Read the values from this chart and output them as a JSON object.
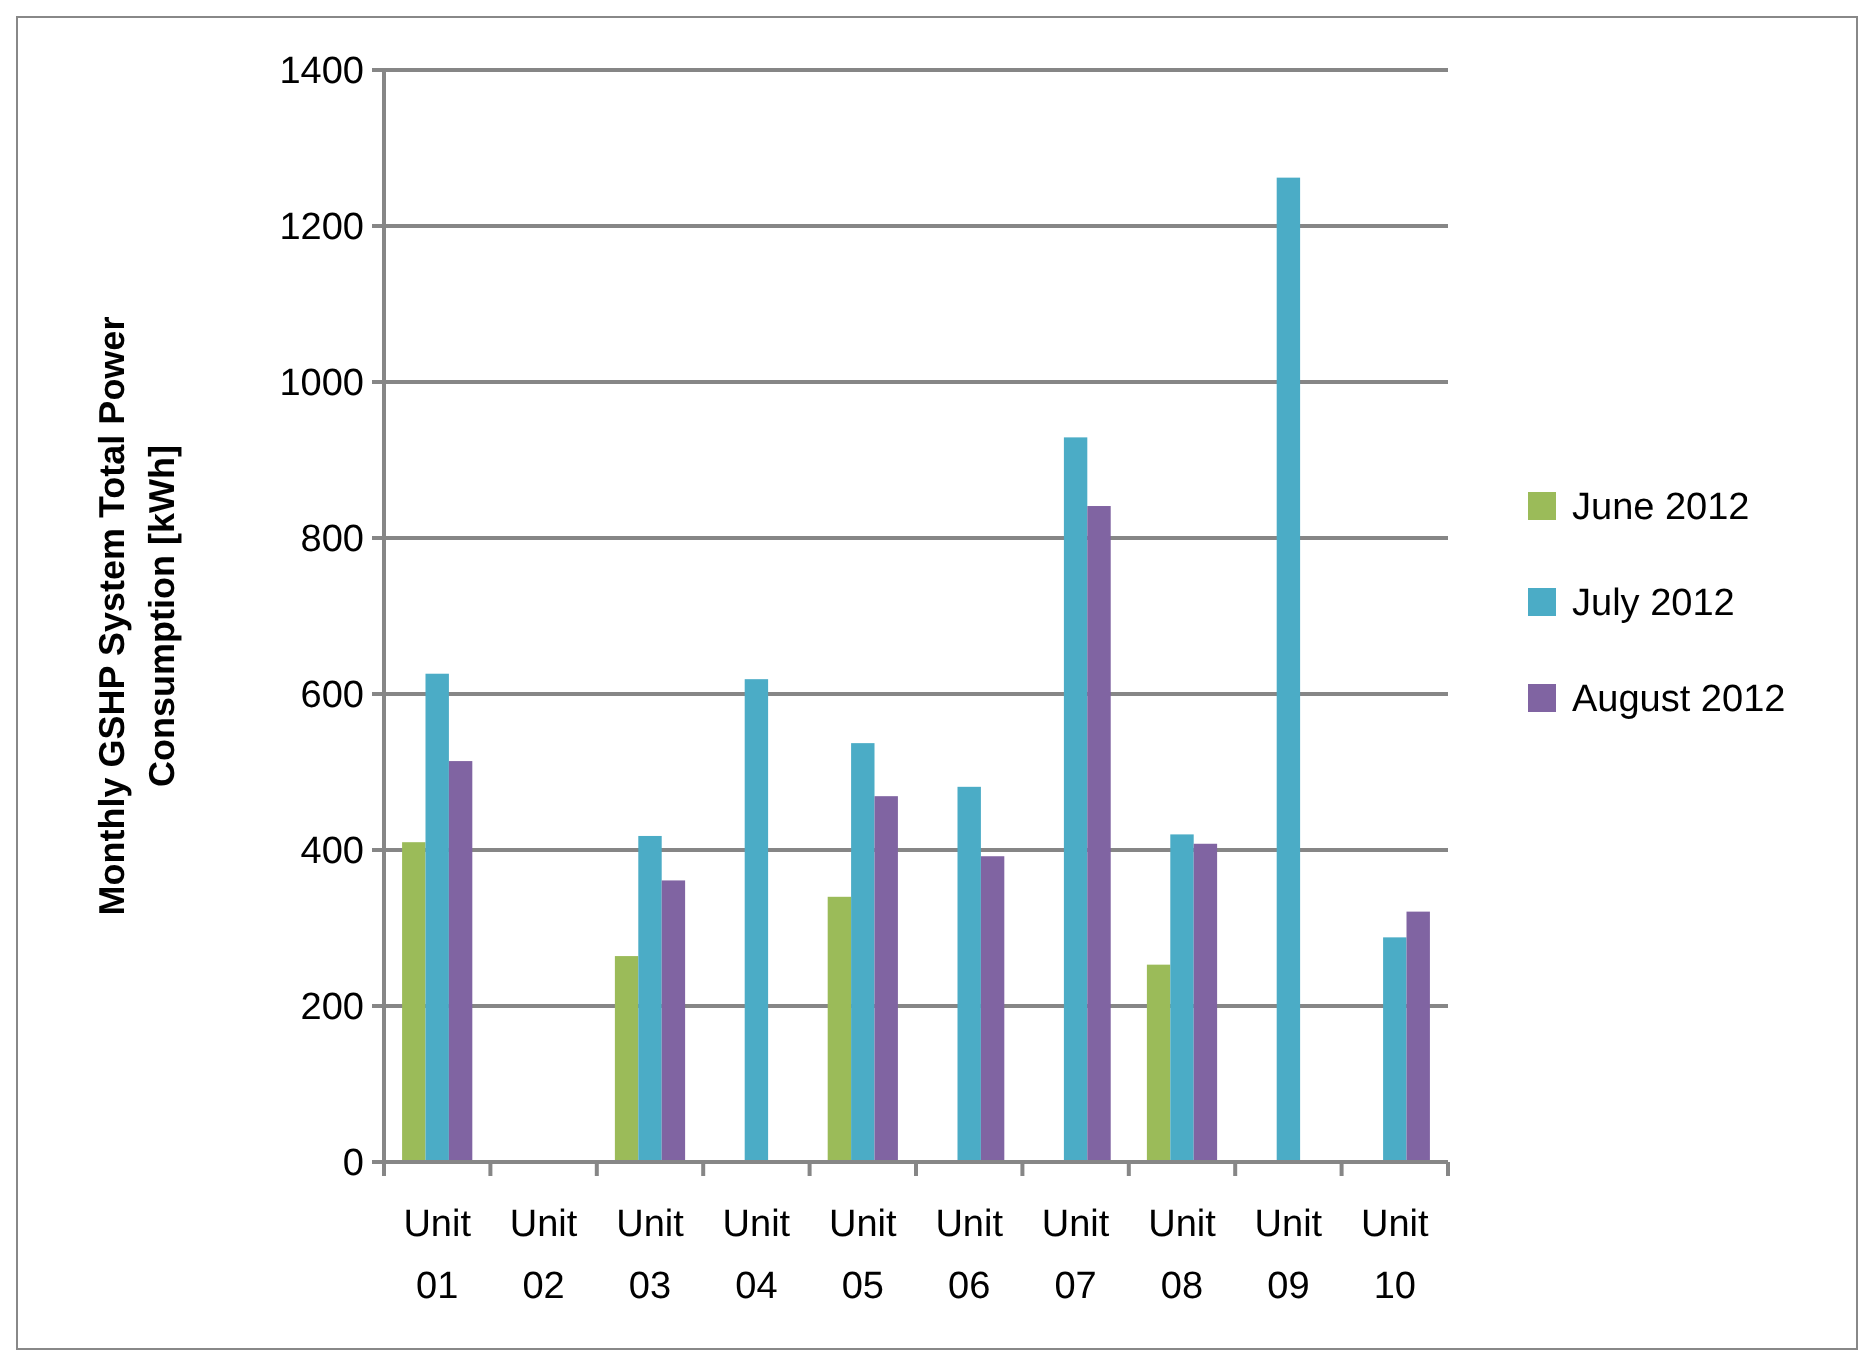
{
  "chart_data": {
    "type": "bar",
    "ylabel": "Monthly GSHP System Total Power Consumption [kWh]",
    "categories": [
      "Unit 01",
      "Unit 02",
      "Unit 03",
      "Unit 04",
      "Unit 05",
      "Unit 06",
      "Unit 07",
      "Unit 08",
      "Unit 09",
      "Unit 10"
    ],
    "series": [
      {
        "name": "June 2012",
        "color": "#9bbb59",
        "values": [
          410,
          null,
          264,
          null,
          340,
          null,
          null,
          253,
          null,
          null
        ]
      },
      {
        "name": "July 2012",
        "color": "#4bacc6",
        "values": [
          626,
          null,
          418,
          619,
          537,
          481,
          929,
          420,
          1262,
          288
        ]
      },
      {
        "name": "August 2012",
        "color": "#8064a2",
        "values": [
          514,
          null,
          361,
          null,
          469,
          392,
          841,
          408,
          null,
          321
        ]
      }
    ],
    "ylim": [
      0,
      1400
    ],
    "yticks": [
      0,
      200,
      400,
      600,
      800,
      1000,
      1200,
      1400
    ],
    "grid": "y",
    "legend": "right"
  }
}
